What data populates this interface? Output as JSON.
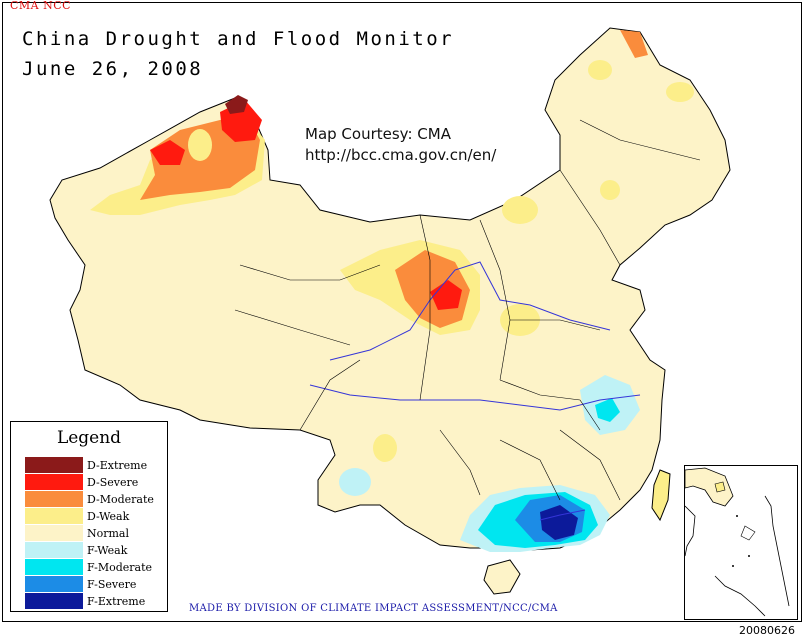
{
  "header": {
    "org_tag": "CMA NCC",
    "title": "China Drought and Flood Monitor",
    "date": "June 26, 2008"
  },
  "courtesy": {
    "line1": "Map Courtesy: CMA",
    "line2": "http://bcc.cma.gov.cn/en/"
  },
  "legend": {
    "title": "Legend",
    "items": [
      {
        "label": "D-Extreme",
        "color": "#8b1a1a"
      },
      {
        "label": "D-Severe",
        "color": "#ff1a0f"
      },
      {
        "label": "D-Moderate",
        "color": "#fa8c3c"
      },
      {
        "label": "D-Weak",
        "color": "#fcee8a"
      },
      {
        "label": "Normal",
        "color": "#fdf3c8"
      },
      {
        "label": "F-Weak",
        "color": "#bff2f6"
      },
      {
        "label": "F-Moderate",
        "color": "#00e6f0"
      },
      {
        "label": "F-Severe",
        "color": "#1c8ce6"
      },
      {
        "label": "F-Extreme",
        "color": "#0c1a9a"
      }
    ]
  },
  "footer": {
    "made_by": "MADE BY DIVISION OF CLIMATE IMPACT ASSESSMENT/NCC/CMA",
    "stamp": "20080626"
  }
}
